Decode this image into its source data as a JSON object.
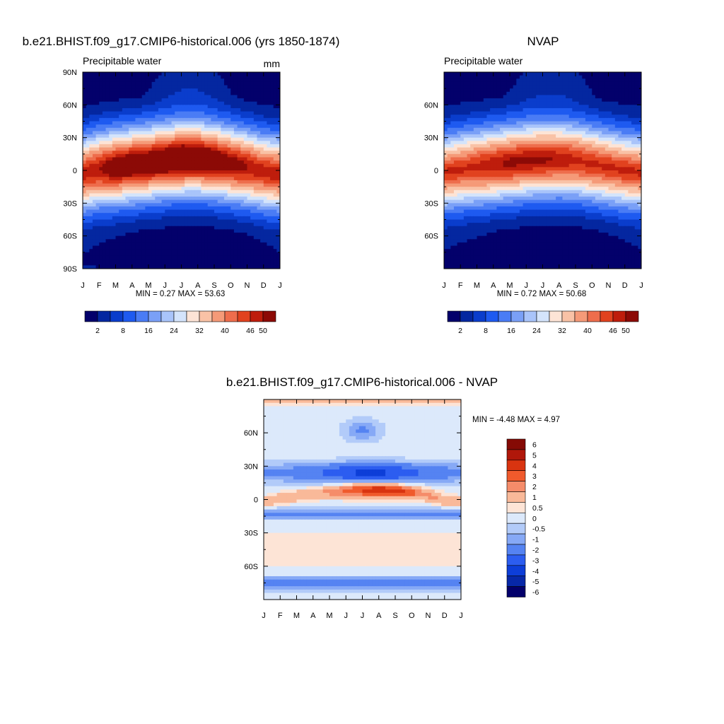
{
  "chart_data": [
    {
      "type": "heatmap",
      "title": "b.e21.BHIST.f09_g17.CMIP6-historical.006 (yrs 1850-1874)",
      "subtitle": "Precipitable water",
      "units": "mm",
      "xlabel": "",
      "ylabel": "",
      "x_ticks": [
        "J",
        "F",
        "M",
        "A",
        "M",
        "J",
        "J",
        "A",
        "S",
        "O",
        "N",
        "D",
        "J"
      ],
      "y_ticks": [
        "90N",
        "60N",
        "30N",
        "0",
        "30S",
        "60S",
        "90S"
      ],
      "ylim": [
        -90,
        90
      ],
      "stats": "MIN =   0.27 MAX =  53.63",
      "levels": [
        "2",
        "8",
        "16",
        "24",
        "32",
        "40",
        "46",
        "50"
      ],
      "field": {
        "eq_center_lat": [
          -3,
          1,
          3,
          5,
          7,
          9,
          11,
          11,
          9,
          6,
          3,
          -1,
          -3
        ],
        "peak_mm": [
          46,
          48,
          51,
          52,
          52,
          53,
          54,
          53,
          52,
          50,
          48,
          46,
          46
        ]
      }
    },
    {
      "type": "heatmap",
      "title": "NVAP",
      "subtitle": "Precipitable water",
      "x_ticks": [
        "J",
        "F",
        "M",
        "A",
        "M",
        "J",
        "J",
        "A",
        "S",
        "O",
        "N",
        "D",
        "J"
      ],
      "y_ticks": [
        "60N",
        "30N",
        "0",
        "30S",
        "60S"
      ],
      "ylim": [
        -90,
        90
      ],
      "stats": "MIN =   0.72 MAX =  50.68",
      "levels": [
        "2",
        "8",
        "16",
        "24",
        "32",
        "40",
        "46",
        "50"
      ],
      "field": {
        "eq_center_lat": [
          -2,
          1,
          3,
          5,
          7,
          9,
          10,
          10,
          9,
          6,
          3,
          0,
          -2
        ],
        "peak_mm": [
          45,
          46,
          48,
          49,
          50,
          50,
          50,
          49,
          48,
          47,
          46,
          45,
          45
        ]
      }
    },
    {
      "type": "heatmap",
      "title": "b.e21.BHIST.f09_g17.CMIP6-historical.006 - NVAP",
      "x_ticks": [
        "J",
        "F",
        "M",
        "A",
        "M",
        "J",
        "J",
        "A",
        "S",
        "O",
        "N",
        "D",
        "J"
      ],
      "y_ticks": [
        "60N",
        "30N",
        "0",
        "30S",
        "60S"
      ],
      "ylim": [
        -90,
        90
      ],
      "stats": "MIN =  -4.48 MAX =   4.97",
      "levels": [
        "6",
        "5",
        "4",
        "3",
        "2",
        "1",
        "0.5",
        "0",
        "-0.5",
        "-1",
        "-2",
        "-3",
        "-4",
        "-5",
        "-6"
      ]
    }
  ],
  "colors": {
    "blue_white_red": [
      "#03006b",
      "#0427a0",
      "#0a3dcc",
      "#1e5af0",
      "#4a7cf5",
      "#7aa0f7",
      "#a9c4fa",
      "#d4e4fb",
      "#fde4d6",
      "#f9c2a6",
      "#f59a78",
      "#ee6d4c",
      "#e1421f",
      "#be1d0c",
      "#8c0a06"
    ],
    "diff_ramp": [
      "#850a05",
      "#b0170a",
      "#d93410",
      "#f05a2c",
      "#f58c6a",
      "#f9b999",
      "#fde4d6",
      "#dce9fb",
      "#b2cbf9",
      "#86a9f6",
      "#5583f2",
      "#2c5df0",
      "#0d3ed8",
      "#0728a8",
      "#03006b"
    ]
  }
}
